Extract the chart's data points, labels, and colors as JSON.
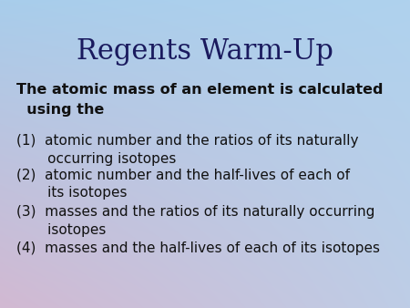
{
  "title": "Regents Warm-Up",
  "title_fontsize": 22,
  "title_color": "#1a1a5e",
  "question_line1": "The atomic mass of an element is calculated",
  "question_line2": "  using the",
  "question_fontsize": 11.5,
  "options_line1": [
    "(1)  atomic number and the ratios of its naturally",
    "(2)  atomic number and the half-lives of each of",
    "(3)  masses and the ratios of its naturally occurring",
    "(4)  masses and the half-lives of each of its isotopes"
  ],
  "options_line2": [
    "       occurring isotopes",
    "       its isotopes",
    "       isotopes",
    ""
  ],
  "options_fontsize": 11,
  "text_color": "#111111",
  "tl": [
    168,
    205,
    235
  ],
  "tr": [
    175,
    210,
    238
  ],
  "bl": [
    210,
    185,
    210
  ],
  "br": [
    190,
    205,
    230
  ]
}
